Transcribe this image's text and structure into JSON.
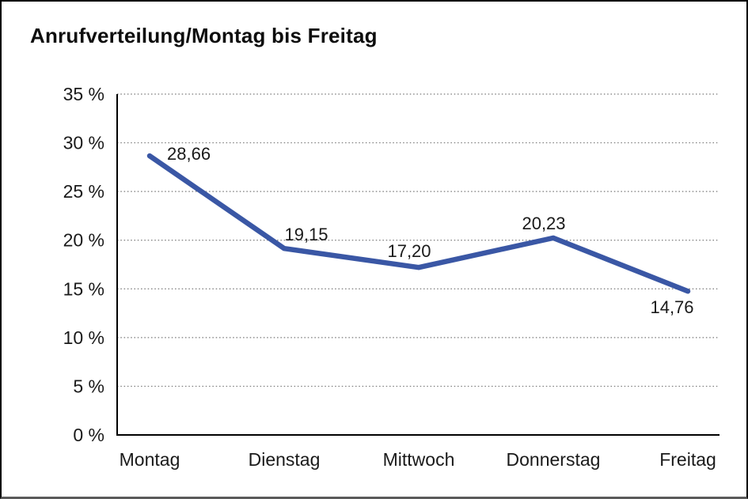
{
  "chart_data": {
    "type": "line",
    "title": "Anrufverteilung/Montag bis Freitag",
    "categories": [
      "Montag",
      "Dienstag",
      "Mittwoch",
      "Donnerstag",
      "Freitag"
    ],
    "series": [
      {
        "name": "Anrufverteilung",
        "values": [
          28.66,
          19.15,
          17.2,
          20.23,
          14.76
        ]
      }
    ],
    "value_labels": [
      "28,66",
      "19,15",
      "17,20",
      "20,23",
      "14,76"
    ],
    "xlabel": "",
    "ylabel": "",
    "ylim": [
      0,
      35
    ],
    "ytick_step": 5,
    "ytick_labels": [
      "0 %",
      "5 %",
      "10 %",
      "15 %",
      "20 %",
      "25 %",
      "30 %",
      "35 %"
    ],
    "grid": "horizontal-dotted",
    "legend": "none",
    "line_color": "#3A57A5",
    "axis_color": "#000000",
    "gridline_color": "#777777",
    "text_color": "#1A1A1A"
  }
}
